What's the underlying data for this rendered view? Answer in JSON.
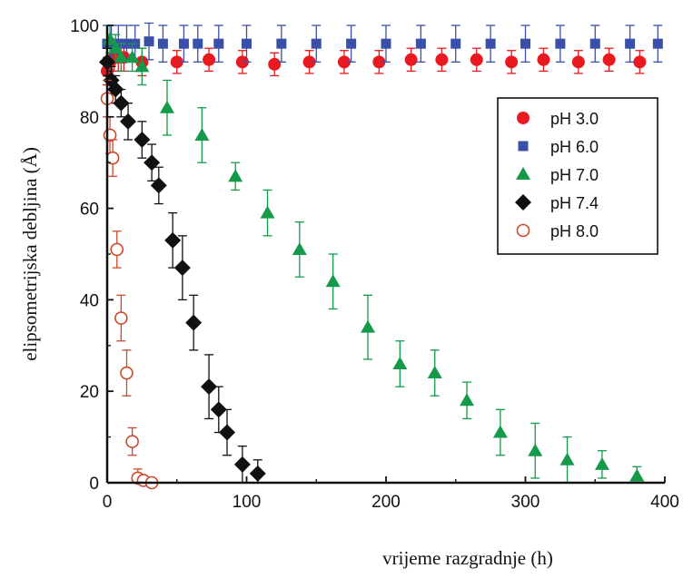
{
  "chart_data": {
    "type": "scatter",
    "xlabel": "vrijeme razgradnje (h)",
    "ylabel": "elipsometrijska debljina (Å)",
    "xlim": [
      0,
      400
    ],
    "ylim": [
      0,
      100
    ],
    "xticks": [
      0,
      100,
      200,
      300,
      400
    ],
    "yticks": [
      0,
      20,
      40,
      60,
      80,
      100
    ],
    "grid": false,
    "legend_position": "top-right",
    "series": [
      {
        "name": "pH 3.0",
        "color": "#e8191f",
        "marker": "circle",
        "x": [
          0,
          2,
          5,
          8,
          12,
          25,
          50,
          73,
          97,
          120,
          145,
          170,
          195,
          218,
          240,
          265,
          290,
          313,
          338,
          360,
          382
        ],
        "y": [
          90,
          92,
          93,
          93,
          93,
          92,
          92,
          92.5,
          92,
          91.5,
          92,
          92,
          92,
          92.5,
          92.5,
          92.5,
          92,
          92.5,
          92,
          92.5,
          92
        ],
        "err": [
          3,
          3,
          3,
          3,
          3,
          3,
          2.5,
          2.5,
          2.5,
          2.5,
          2.5,
          2.5,
          2.5,
          2.5,
          2.5,
          2.5,
          2.5,
          2.5,
          2.5,
          2.5,
          2.5
        ]
      },
      {
        "name": "pH 6.0",
        "color": "#3a4fa8",
        "marker": "square",
        "x": [
          0,
          3,
          8,
          14,
          20,
          30,
          40,
          55,
          65,
          80,
          100,
          125,
          150,
          175,
          200,
          225,
          250,
          275,
          300,
          325,
          350,
          375,
          395
        ],
        "y": [
          96,
          96,
          96,
          96,
          96,
          96.5,
          96,
          96,
          96,
          96,
          96,
          96,
          96,
          96,
          96,
          96,
          96,
          96,
          96,
          96,
          96,
          96,
          96
        ],
        "err": [
          4,
          4,
          4,
          4,
          4,
          4,
          4,
          4,
          4,
          4,
          4,
          4,
          4,
          4,
          4,
          4,
          4,
          4,
          4,
          4,
          4,
          4,
          4
        ]
      },
      {
        "name": "pH 7.0",
        "color": "#149a4a",
        "marker": "triangle",
        "x": [
          2,
          6,
          10,
          18,
          25,
          43,
          68,
          92,
          115,
          138,
          162,
          187,
          210,
          235,
          258,
          282,
          307,
          330,
          355,
          380
        ],
        "y": [
          97,
          95,
          93,
          93,
          91,
          82,
          76,
          67,
          59,
          51,
          44,
          34,
          26,
          24,
          18,
          11,
          7,
          5,
          4,
          1.5
        ],
        "err": [
          3,
          3,
          3,
          3,
          4,
          6,
          6,
          3,
          5,
          6,
          6,
          7,
          5,
          5,
          4,
          5,
          6,
          5,
          3,
          2
        ]
      },
      {
        "name": "pH 7.4",
        "color": "#111111",
        "marker": "diamond",
        "x": [
          0,
          3,
          6,
          10,
          15,
          25,
          32,
          37,
          47,
          54,
          62,
          73,
          80,
          86,
          97,
          108
        ],
        "y": [
          92,
          88,
          86,
          83,
          79,
          75,
          70,
          65,
          53,
          47,
          35,
          21,
          16,
          11,
          4,
          2
        ],
        "err": [
          3,
          3,
          3,
          3,
          4,
          4,
          4,
          4,
          6,
          7,
          6,
          7,
          5,
          5,
          4,
          3
        ]
      },
      {
        "name": "pH 8.0",
        "color": "#cc4a2a",
        "marker": "open-circle",
        "x": [
          0,
          2,
          4,
          7,
          10,
          14,
          18,
          22,
          26,
          32
        ],
        "y": [
          84,
          76,
          71,
          51,
          36,
          24,
          9,
          1,
          0.5,
          0
        ],
        "err": [
          4,
          4,
          4,
          4,
          5,
          5,
          3,
          2,
          1,
          0.5
        ]
      }
    ]
  }
}
